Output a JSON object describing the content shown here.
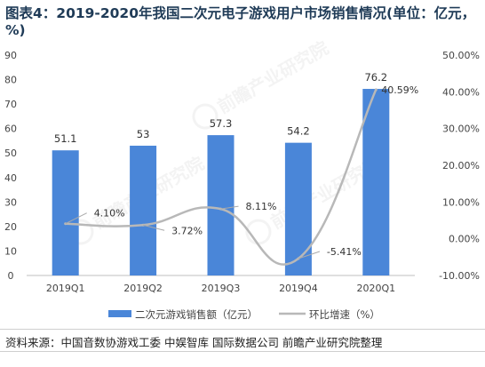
{
  "title": "图表4：2019-2020年我国二次元电子游戏用户市场销售情况(单位：亿元，%)",
  "source": "资料来源：中国音数协游戏工委 中娱智库 国际数据公司 前瞻产业研究院整理",
  "watermark_text": "前瞻产业研究院",
  "colors": {
    "bar": "#4a86d8",
    "line": "#b8b8b8",
    "title": "#1f3b57",
    "grid": "#dddddd"
  },
  "chart_data": {
    "type": "bar",
    "categories": [
      "2019Q1",
      "2019Q2",
      "2019Q3",
      "2019Q4",
      "2020Q1"
    ],
    "series": [
      {
        "name": "二次元游戏销售额（亿元）",
        "type": "bar",
        "axis": "left",
        "values": [
          51.1,
          53,
          57.3,
          54.2,
          76.2
        ],
        "labels": [
          "51.1",
          "53",
          "57.3",
          "54.2",
          "76.2"
        ]
      },
      {
        "name": "环比增速（%）",
        "type": "line",
        "axis": "right",
        "smooth": true,
        "values": [
          4.1,
          3.72,
          8.11,
          -5.41,
          40.59
        ],
        "labels": [
          "4.10%",
          "3.72%",
          "8.11%",
          "-5.41%",
          "40.59%"
        ]
      }
    ],
    "y_left": {
      "min": 0,
      "max": 90,
      "step": 10,
      "ticks": [
        "0",
        "10",
        "20",
        "30",
        "40",
        "50",
        "60",
        "70",
        "80",
        "90"
      ]
    },
    "y_right": {
      "min": -10,
      "max": 50,
      "step": 10,
      "ticks": [
        "-10.00%",
        "0.00%",
        "10.00%",
        "20.00%",
        "30.00%",
        "40.00%",
        "50.00%"
      ]
    },
    "grid": false,
    "legend_position": "bottom"
  }
}
